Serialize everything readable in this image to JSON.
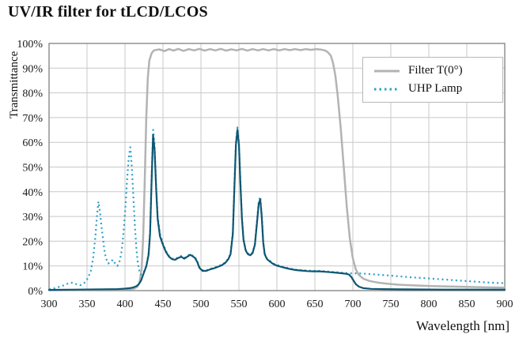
{
  "header": {
    "title": "UV/IR filter for tLCD/LCOS"
  },
  "chart_data": {
    "type": "line",
    "title": "UV/IR filter for tLCD/LCOS",
    "xlabel": "Wavelength [nm]",
    "ylabel": "Transmittance",
    "xlim": [
      300,
      900
    ],
    "ylim": [
      0,
      100
    ],
    "grid": true,
    "xticks": [
      300,
      350,
      400,
      450,
      500,
      550,
      600,
      650,
      700,
      750,
      800,
      850,
      900
    ],
    "yticks": [
      0,
      10,
      20,
      30,
      40,
      50,
      60,
      70,
      80,
      90,
      100
    ],
    "ytick_labels": [
      "0%",
      "10%",
      "20%",
      "30%",
      "40%",
      "50%",
      "60%",
      "70%",
      "80%",
      "90%",
      "100%"
    ],
    "legend": {
      "position": "top-right",
      "items": [
        {
          "label": "Filter T(0°)",
          "color": "#b3b3b3",
          "dash": "solid"
        },
        {
          "label": "UHP Lamp",
          "color": "#2b9fc9",
          "dash": "dotted"
        }
      ]
    },
    "series": [
      {
        "name": "filter-t0",
        "color": "#b3b3b3",
        "width": 2.5,
        "dash": null,
        "points": [
          [
            300,
            0.3
          ],
          [
            340,
            0.3
          ],
          [
            380,
            0.4
          ],
          [
            405,
            0.5
          ],
          [
            412,
            0.8
          ],
          [
            416,
            1.5
          ],
          [
            419,
            3
          ],
          [
            422,
            9
          ],
          [
            424,
            22
          ],
          [
            426,
            45
          ],
          [
            428,
            70
          ],
          [
            430,
            86
          ],
          [
            432,
            93
          ],
          [
            435,
            96
          ],
          [
            438,
            97.2
          ],
          [
            445,
            97.6
          ],
          [
            452,
            96.9
          ],
          [
            458,
            97.7
          ],
          [
            464,
            97.1
          ],
          [
            470,
            97.8
          ],
          [
            477,
            97
          ],
          [
            484,
            97.7
          ],
          [
            491,
            97.2
          ],
          [
            498,
            97.8
          ],
          [
            505,
            97.1
          ],
          [
            512,
            97.7
          ],
          [
            519,
            97.2
          ],
          [
            526,
            97.8
          ],
          [
            533,
            97.1
          ],
          [
            540,
            97.6
          ],
          [
            547,
            97.2
          ],
          [
            554,
            97.8
          ],
          [
            561,
            97.1
          ],
          [
            568,
            97.7
          ],
          [
            575,
            97.2
          ],
          [
            582,
            97.7
          ],
          [
            589,
            97.2
          ],
          [
            596,
            97.7
          ],
          [
            603,
            97.2
          ],
          [
            610,
            97.7
          ],
          [
            617,
            97.3
          ],
          [
            624,
            97.7
          ],
          [
            631,
            97.3
          ],
          [
            638,
            97.7
          ],
          [
            645,
            97.4
          ],
          [
            652,
            97.7
          ],
          [
            658,
            97.5
          ],
          [
            663,
            97.2
          ],
          [
            667,
            96.5
          ],
          [
            671,
            95
          ],
          [
            674,
            92
          ],
          [
            677,
            87
          ],
          [
            680,
            79
          ],
          [
            684,
            66
          ],
          [
            688,
            50
          ],
          [
            692,
            34
          ],
          [
            696,
            21
          ],
          [
            700,
            13
          ],
          [
            704,
            8.5
          ],
          [
            708,
            6.3
          ],
          [
            714,
            4.8
          ],
          [
            722,
            3.9
          ],
          [
            732,
            3.3
          ],
          [
            745,
            2.8
          ],
          [
            760,
            2.4
          ],
          [
            780,
            2.1
          ],
          [
            800,
            1.9
          ],
          [
            825,
            1.7
          ],
          [
            850,
            1.5
          ],
          [
            875,
            1.3
          ],
          [
            900,
            1.2
          ]
        ]
      },
      {
        "name": "uhp-lamp",
        "color": "#2b9fc9",
        "width": 2.2,
        "dash": "2 3.8",
        "points": [
          [
            300,
            0.6
          ],
          [
            308,
            1
          ],
          [
            314,
            1.6
          ],
          [
            320,
            2.2
          ],
          [
            326,
            3
          ],
          [
            331,
            3.2
          ],
          [
            336,
            2.6
          ],
          [
            341,
            2.2
          ],
          [
            346,
            3
          ],
          [
            351,
            5
          ],
          [
            355,
            8
          ],
          [
            358,
            13
          ],
          [
            361,
            22
          ],
          [
            363,
            30
          ],
          [
            365,
            36
          ],
          [
            367,
            32
          ],
          [
            369,
            26
          ],
          [
            371,
            21
          ],
          [
            373,
            16
          ],
          [
            375,
            13
          ],
          [
            378,
            11
          ],
          [
            381,
            11.5
          ],
          [
            384,
            12.5
          ],
          [
            387,
            11
          ],
          [
            390,
            10
          ],
          [
            393,
            12
          ],
          [
            395,
            15
          ],
          [
            397,
            20
          ],
          [
            399,
            27
          ],
          [
            401,
            36
          ],
          [
            403,
            46
          ],
          [
            405,
            54
          ],
          [
            407,
            58
          ],
          [
            409,
            50
          ],
          [
            411,
            38
          ],
          [
            413,
            26
          ],
          [
            415,
            17
          ],
          [
            417,
            11
          ],
          [
            419,
            8
          ],
          [
            421,
            6.5
          ],
          [
            424,
            7
          ],
          [
            428,
            10
          ],
          [
            431,
            15
          ],
          [
            433,
            24
          ],
          [
            435,
            46
          ],
          [
            437,
            65
          ],
          [
            439,
            59
          ],
          [
            441,
            42
          ],
          [
            443,
            30
          ],
          [
            446,
            23
          ],
          [
            450,
            19
          ],
          [
            454,
            16
          ],
          [
            458,
            14
          ],
          [
            462,
            13
          ],
          [
            466,
            12.8
          ],
          [
            470,
            13.5
          ],
          [
            474,
            14
          ],
          [
            478,
            13.2
          ],
          [
            482,
            14
          ],
          [
            486,
            14.8
          ],
          [
            489,
            14.2
          ],
          [
            492,
            13.6
          ],
          [
            495,
            12
          ],
          [
            498,
            9.5
          ],
          [
            502,
            8.3
          ],
          [
            507,
            8.2
          ],
          [
            512,
            8.8
          ],
          [
            517,
            9.2
          ],
          [
            522,
            9.8
          ],
          [
            527,
            10.4
          ],
          [
            532,
            11.4
          ],
          [
            536,
            13
          ],
          [
            539,
            15
          ],
          [
            542,
            24
          ],
          [
            544,
            42
          ],
          [
            546,
            60
          ],
          [
            548,
            66
          ],
          [
            550,
            60
          ],
          [
            552,
            44
          ],
          [
            554,
            30
          ],
          [
            556,
            21
          ],
          [
            559,
            16.5
          ],
          [
            562,
            15
          ],
          [
            565,
            14.6
          ],
          [
            568,
            15.5
          ],
          [
            571,
            19
          ],
          [
            574,
            29
          ],
          [
            576,
            36
          ],
          [
            578,
            38
          ],
          [
            580,
            31
          ],
          [
            582,
            20
          ],
          [
            584,
            15
          ],
          [
            587,
            13
          ],
          [
            591,
            12
          ],
          [
            595,
            11
          ],
          [
            600,
            10.4
          ],
          [
            606,
            9.8
          ],
          [
            612,
            9.3
          ],
          [
            618,
            8.9
          ],
          [
            625,
            8.5
          ],
          [
            632,
            8.3
          ],
          [
            640,
            8.1
          ],
          [
            648,
            8
          ],
          [
            656,
            8
          ],
          [
            664,
            7.8
          ],
          [
            672,
            7.6
          ],
          [
            680,
            7.4
          ],
          [
            688,
            7.2
          ],
          [
            696,
            7
          ],
          [
            704,
            7
          ],
          [
            712,
            6.9
          ],
          [
            722,
            6.7
          ],
          [
            732,
            6.5
          ],
          [
            744,
            6.2
          ],
          [
            756,
            5.9
          ],
          [
            768,
            5.6
          ],
          [
            780,
            5.3
          ],
          [
            792,
            5.1
          ],
          [
            806,
            4.8
          ],
          [
            820,
            4.5
          ],
          [
            834,
            4.2
          ],
          [
            848,
            3.9
          ],
          [
            862,
            3.6
          ],
          [
            876,
            3.3
          ],
          [
            890,
            3.1
          ],
          [
            900,
            3
          ]
        ]
      },
      {
        "name": "uhp-lamp-through-filter",
        "color": "#0e5672",
        "width": 2.2,
        "dash": null,
        "points": [
          [
            300,
            0.3
          ],
          [
            340,
            0.4
          ],
          [
            370,
            0.5
          ],
          [
            390,
            0.6
          ],
          [
            400,
            0.8
          ],
          [
            406,
            1
          ],
          [
            411,
            1.3
          ],
          [
            415,
            1.8
          ],
          [
            418,
            2.6
          ],
          [
            421,
            4
          ],
          [
            424,
            6.5
          ],
          [
            428,
            9.8
          ],
          [
            431,
            14.5
          ],
          [
            433,
            23
          ],
          [
            435,
            44
          ],
          [
            437,
            63
          ],
          [
            439,
            57
          ],
          [
            441,
            41
          ],
          [
            443,
            29
          ],
          [
            446,
            22
          ],
          [
            450,
            18.5
          ],
          [
            454,
            15.6
          ],
          [
            458,
            13.7
          ],
          [
            462,
            12.7
          ],
          [
            466,
            12.5
          ],
          [
            470,
            13.2
          ],
          [
            474,
            13.7
          ],
          [
            478,
            12.9
          ],
          [
            482,
            13.7
          ],
          [
            486,
            14.5
          ],
          [
            489,
            13.9
          ],
          [
            492,
            13.3
          ],
          [
            495,
            11.7
          ],
          [
            498,
            9.2
          ],
          [
            502,
            8
          ],
          [
            507,
            8
          ],
          [
            512,
            8.6
          ],
          [
            517,
            9
          ],
          [
            522,
            9.6
          ],
          [
            527,
            10.2
          ],
          [
            532,
            11.2
          ],
          [
            536,
            12.7
          ],
          [
            539,
            14.7
          ],
          [
            542,
            23
          ],
          [
            544,
            41
          ],
          [
            546,
            59
          ],
          [
            548,
            65
          ],
          [
            550,
            59
          ],
          [
            552,
            43
          ],
          [
            554,
            29
          ],
          [
            556,
            20.5
          ],
          [
            559,
            16.2
          ],
          [
            562,
            14.7
          ],
          [
            565,
            14.3
          ],
          [
            568,
            15.2
          ],
          [
            571,
            18.6
          ],
          [
            574,
            28
          ],
          [
            576,
            35
          ],
          [
            578,
            37
          ],
          [
            580,
            30
          ],
          [
            582,
            19.5
          ],
          [
            584,
            14.7
          ],
          [
            587,
            12.7
          ],
          [
            591,
            11.7
          ],
          [
            595,
            10.8
          ],
          [
            600,
            10.1
          ],
          [
            606,
            9.6
          ],
          [
            612,
            9.1
          ],
          [
            618,
            8.7
          ],
          [
            625,
            8.3
          ],
          [
            632,
            8.1
          ],
          [
            640,
            7.9
          ],
          [
            648,
            7.8
          ],
          [
            656,
            7.8
          ],
          [
            664,
            7.6
          ],
          [
            672,
            7.4
          ],
          [
            680,
            7.2
          ],
          [
            686,
            7
          ],
          [
            691,
            6.8
          ],
          [
            695,
            6.5
          ],
          [
            698,
            5.5
          ],
          [
            701,
            4
          ],
          [
            704,
            2.6
          ],
          [
            708,
            1.6
          ],
          [
            714,
            1
          ],
          [
            724,
            0.7
          ],
          [
            740,
            0.6
          ],
          [
            770,
            0.5
          ],
          [
            820,
            0.4
          ],
          [
            900,
            0.4
          ]
        ]
      }
    ]
  }
}
